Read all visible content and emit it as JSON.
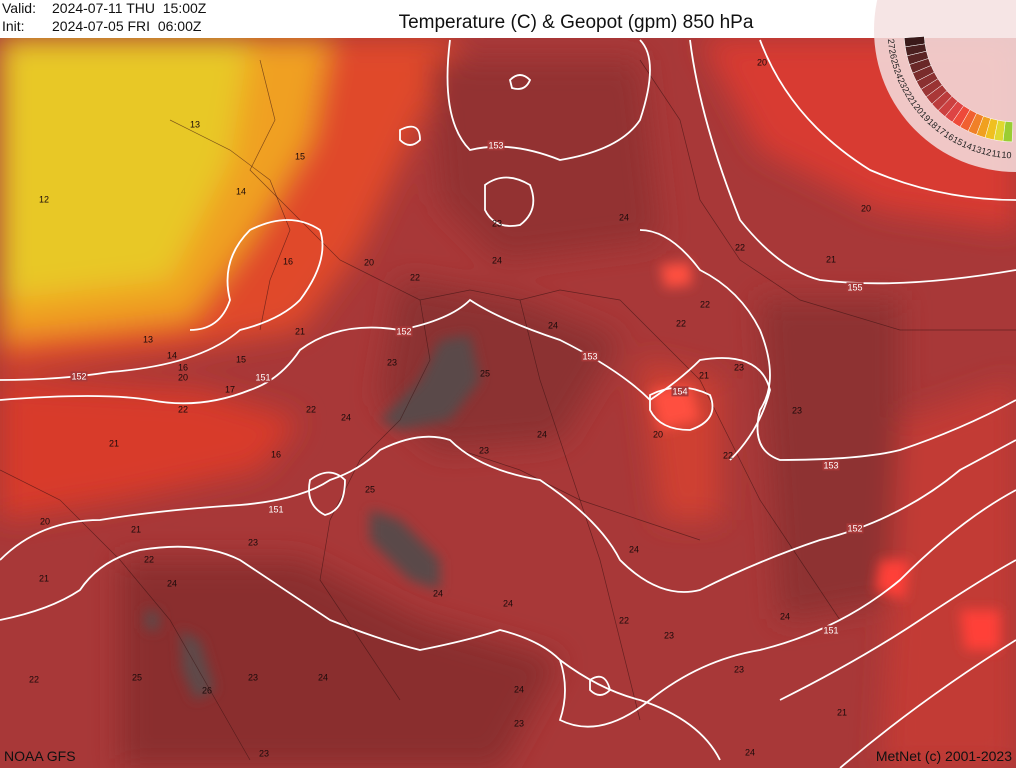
{
  "header": {
    "valid_label": "Valid:",
    "valid_time": "2024-07-11 THU  15:00Z",
    "init_label": "Init:",
    "init_time": "2024-07-05 FRI  06:00Z",
    "title": "Temperature (C) & Geopot (gpm) 850 hPa"
  },
  "footer": {
    "model": "NOAA GFS",
    "credit": "MetNet (c) 2001-2023"
  },
  "scale_labels": [
    "27",
    "26",
    "25",
    "24",
    "23",
    "22",
    "21",
    "20",
    "19",
    "18",
    "17",
    "16",
    "15",
    "14",
    "13",
    "12",
    "11",
    "10"
  ],
  "temperature_labels": [
    "13",
    "15",
    "14",
    "12",
    "16",
    "20",
    "22",
    "23",
    "24",
    "24",
    "22",
    "21",
    "20",
    "20",
    "24",
    "22",
    "22",
    "21",
    "13",
    "14",
    "15",
    "16",
    "20",
    "23",
    "25",
    "21",
    "23",
    "17",
    "22",
    "22",
    "24",
    "23",
    "21",
    "24",
    "23",
    "20",
    "22",
    "16",
    "25",
    "20",
    "21",
    "23",
    "22",
    "21",
    "24",
    "24",
    "24",
    "24",
    "22",
    "23",
    "24",
    "25",
    "26",
    "23",
    "24",
    "22",
    "24",
    "23",
    "23",
    "21",
    "23",
    "24"
  ],
  "geopotential_labels": [
    "153",
    "152",
    "151",
    "152",
    "153",
    "154",
    "155",
    "153",
    "152",
    "151",
    "151"
  ]
}
